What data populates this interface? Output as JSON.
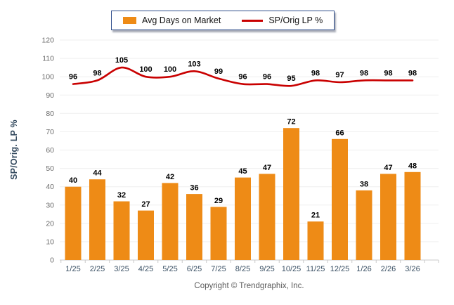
{
  "legend": {
    "bar_label": "Avg Days on Market",
    "line_label": "SP/Orig LP %"
  },
  "footer": {
    "copyright": "Copyright © Trendgraphix, Inc."
  },
  "colors": {
    "bar": "#EE8B16",
    "line": "#C90000",
    "legend_border": "#2F4E8C",
    "grid": "#EFEFEF",
    "axis": "#C8C8C8",
    "ytick_text": "#6E6E6E",
    "xtick_text": "#3A5064",
    "value_text": "#000000",
    "ylabel_text": "#33495E",
    "copyright_text": "#595959"
  },
  "chart_data": {
    "type": "bar+line",
    "categories": [
      "1/25",
      "2/25",
      "3/25",
      "4/25",
      "5/25",
      "6/25",
      "7/25",
      "8/25",
      "9/25",
      "10/25",
      "11/25",
      "12/25",
      "1/26",
      "2/26",
      "3/26"
    ],
    "series": [
      {
        "name": "Avg Days on Market",
        "type": "bar",
        "values": [
          40,
          44,
          32,
          27,
          42,
          36,
          29,
          45,
          47,
          72,
          21,
          66,
          38,
          47,
          48
        ]
      },
      {
        "name": "SP/Orig LP %",
        "type": "line",
        "values": [
          96,
          98,
          105,
          100,
          100,
          103,
          99,
          96,
          96,
          95,
          98,
          97,
          98,
          98,
          98
        ]
      }
    ],
    "title": "",
    "xlabel": "",
    "ylabel": "SP/Orig. LP %",
    "ylim": [
      0,
      120
    ],
    "yticks": [
      0,
      10,
      20,
      30,
      40,
      50,
      60,
      70,
      80,
      90,
      100,
      110,
      120
    ],
    "grid": true,
    "legend_position": "top-center",
    "data_labels": true
  }
}
